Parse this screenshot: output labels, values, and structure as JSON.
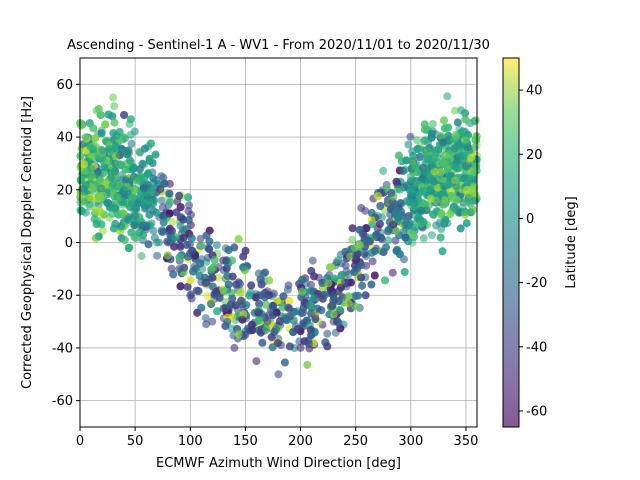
{
  "chart_data": {
    "type": "scatter",
    "title": "Ascending - Sentinel-1 A - WV1 - From 2020/11/01 to 2020/11/30",
    "xlabel": "ECMWF Azimuth Wind Direction [deg]",
    "ylabel": "Corrected Geophysical Doppler Centroid [Hz]",
    "xlim": [
      0,
      360
    ],
    "ylim": [
      -70,
      70
    ],
    "xticks": [
      "0",
      "50",
      "100",
      "150",
      "200",
      "250",
      "300",
      "350"
    ],
    "yticks": [
      "-60",
      "-40",
      "-20",
      "0",
      "20",
      "40",
      "60"
    ],
    "grid": true,
    "marker_alpha": 0.6,
    "colormap": "viridis",
    "colorbar": {
      "label": "Latitude [deg]",
      "range": [
        -65,
        50
      ],
      "ticks": [
        "-60",
        "-40",
        "-20",
        "0",
        "20",
        "40"
      ]
    },
    "trend": {
      "description": "Doppler centroid vs wind direction follows a cosine-like curve",
      "x": [
        0,
        30,
        60,
        90,
        120,
        150,
        180,
        210,
        240,
        270,
        300,
        330,
        360
      ],
      "y_center": [
        28,
        27,
        18,
        2,
        -12,
        -25,
        -30,
        -26,
        -14,
        3,
        18,
        27,
        30
      ],
      "y_spread": [
        18,
        20,
        18,
        16,
        16,
        15,
        14,
        15,
        16,
        16,
        18,
        20,
        18
      ],
      "latitude_pattern": "higher latitudes (green-yellow) near x=0-60 and x=300-360; lower latitudes (purple) near x=120-280"
    },
    "sample_points": [
      [
        5,
        40,
        10
      ],
      [
        10,
        25,
        5
      ],
      [
        15,
        50,
        20
      ],
      [
        20,
        35,
        0
      ],
      [
        25,
        15,
        -10
      ],
      [
        30,
        55,
        25
      ],
      [
        35,
        30,
        15
      ],
      [
        40,
        20,
        -5
      ],
      [
        45,
        45,
        10
      ],
      [
        50,
        10,
        -20
      ],
      [
        55,
        25,
        5
      ],
      [
        60,
        5,
        -30
      ],
      [
        65,
        20,
        0
      ],
      [
        70,
        -5,
        -25
      ],
      [
        80,
        0,
        -30
      ],
      [
        90,
        -10,
        -40
      ],
      [
        100,
        -20,
        -45
      ],
      [
        110,
        -15,
        -35
      ],
      [
        120,
        -30,
        -40
      ],
      [
        130,
        -25,
        -50
      ],
      [
        140,
        -40,
        -45
      ],
      [
        150,
        -35,
        -40
      ],
      [
        160,
        -45,
        -55
      ],
      [
        170,
        -30,
        -35
      ],
      [
        180,
        -50,
        -40
      ],
      [
        190,
        -25,
        -45
      ],
      [
        200,
        -40,
        -50
      ],
      [
        210,
        -35,
        -30
      ],
      [
        220,
        -20,
        -40
      ],
      [
        230,
        -30,
        -45
      ],
      [
        240,
        -15,
        -35
      ],
      [
        250,
        -5,
        -40
      ],
      [
        260,
        0,
        -20
      ],
      [
        270,
        10,
        -10
      ],
      [
        280,
        5,
        -25
      ],
      [
        290,
        20,
        0
      ],
      [
        300,
        25,
        10
      ],
      [
        310,
        35,
        5
      ],
      [
        320,
        45,
        15
      ],
      [
        330,
        30,
        20
      ],
      [
        340,
        50,
        25
      ],
      [
        350,
        40,
        10
      ],
      [
        355,
        20,
        30
      ]
    ]
  }
}
